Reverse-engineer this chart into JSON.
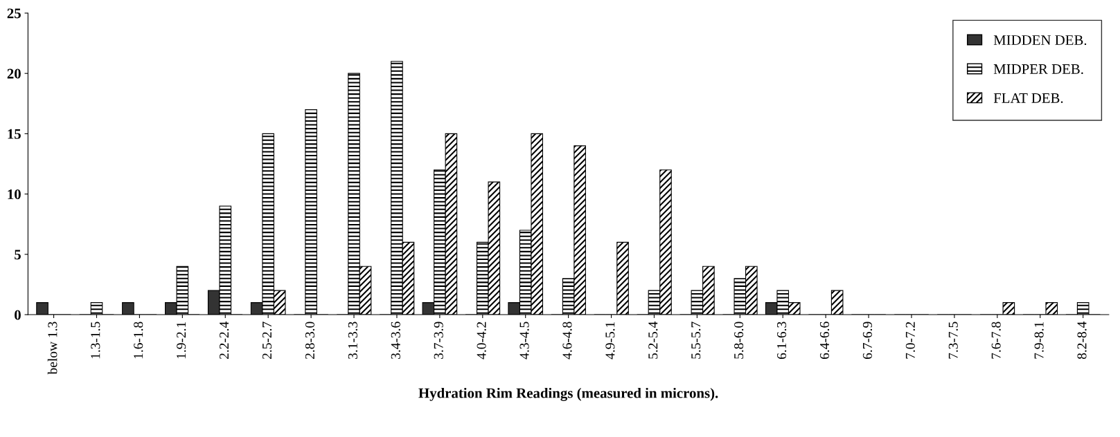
{
  "chart_data": {
    "type": "bar",
    "xlabel": "Hydration Rim Readings (measured in microns).",
    "categories": [
      "below 1.3",
      "1.3-1.5",
      "1.6-1.8",
      "1.9-2.1",
      "2.2-2.4",
      "2.5-2.7",
      "2.8-3.0",
      "3.1-3.3",
      "3.4-3.6",
      "3.7-3.9",
      "4.0-4.2",
      "4.3-4.5",
      "4.6-4.8",
      "4.9-5.1",
      "5.2-5.4",
      "5.5-5.7",
      "5.8-6.0",
      "6.1-6.3",
      "6.4-6.6",
      "6.7-6.9",
      "7.0-7.2",
      "7.3-7.5",
      "7.6-7.8",
      "7.9-8.1",
      "8.2-8.4"
    ],
    "series": [
      {
        "name": "MIDDEN DEB.",
        "color": "#333333",
        "values": [
          1,
          0,
          1,
          1,
          2,
          1,
          0,
          0,
          0,
          1,
          0,
          1,
          0,
          0,
          0,
          0,
          0,
          1,
          0,
          0,
          0,
          0,
          0,
          0,
          0
        ]
      },
      {
        "name": "MIDPER DEB.",
        "color": "#000000",
        "values": [
          0,
          1,
          0,
          4,
          9,
          15,
          17,
          20,
          21,
          12,
          6,
          7,
          3,
          0,
          2,
          2,
          3,
          2,
          0,
          0,
          0,
          0,
          0,
          0,
          1
        ]
      },
      {
        "name": "FLAT DEB.",
        "color": "#000000",
        "values": [
          0,
          0,
          0,
          0,
          0,
          2,
          0,
          4,
          6,
          15,
          11,
          15,
          14,
          6,
          12,
          4,
          4,
          1,
          2,
          0,
          0,
          0,
          1,
          1,
          0
        ]
      }
    ],
    "ylim": [
      0,
      25
    ],
    "yticks": [
      0,
      5,
      10,
      15,
      20,
      25
    ],
    "grid": false,
    "legend": "top right"
  }
}
